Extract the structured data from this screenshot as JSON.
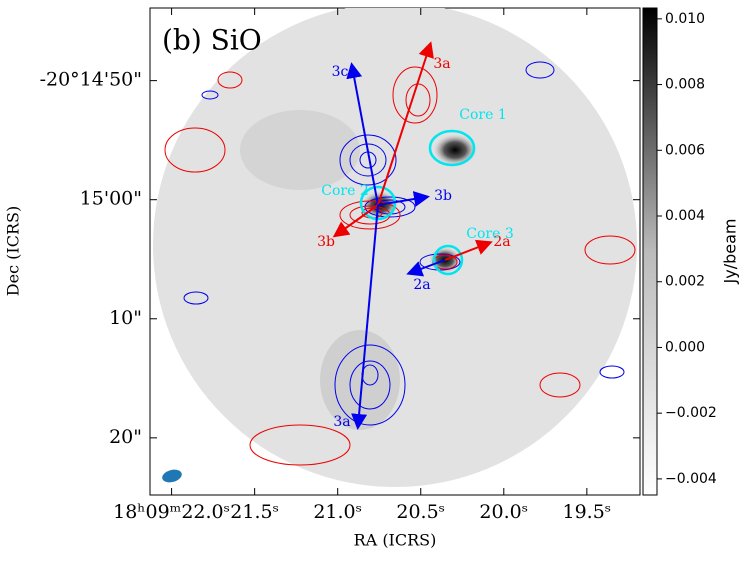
{
  "chart_data": {
    "type": "image",
    "title": "(b) SiO",
    "xlabel": "RA (ICRS)",
    "ylabel": "Dec (ICRS)",
    "xlim": [
      22.13,
      19.18
    ],
    "ylim": [
      -24.8,
      16.1
    ],
    "xticks": [
      {
        "value": 22.0,
        "label": "18ʰ09ᵐ22.0ˢ"
      },
      {
        "value": 21.5,
        "label": "21.5ˢ"
      },
      {
        "value": 21.0,
        "label": "21.0ˢ"
      },
      {
        "value": 20.5,
        "label": "20.5ˢ"
      },
      {
        "value": 20.0,
        "label": "20.0ˢ"
      },
      {
        "value": 19.5,
        "label": "19.5ˢ"
      }
    ],
    "yticks": [
      {
        "value": 10,
        "label": "-20°14'50\""
      },
      {
        "value": 0,
        "label": "15'00\""
      },
      {
        "value": -10,
        "label": "10\""
      },
      {
        "value": -20,
        "label": "20\""
      }
    ],
    "colorbar": {
      "label": "Jy/beam",
      "lim": [
        -0.00449,
        0.01033
      ],
      "ticks": [
        {
          "value": 0.01,
          "label": "0.010"
        },
        {
          "value": 0.008,
          "label": "0.008"
        },
        {
          "value": 0.006,
          "label": "0.006"
        },
        {
          "value": 0.004,
          "label": "0.004"
        },
        {
          "value": 0.002,
          "label": "0.002"
        },
        {
          "value": 0.0,
          "label": "0.000"
        },
        {
          "value": -0.002,
          "label": "−0.002"
        },
        {
          "value": -0.004,
          "label": "−0.004"
        }
      ]
    },
    "annotations": [
      {
        "text": "3c",
        "color": "#0000ee"
      },
      {
        "text": "3a",
        "color": "#ee0000"
      },
      {
        "text": "3b",
        "color": "#0000ee"
      },
      {
        "text": "3b",
        "color": "#ee0000"
      },
      {
        "text": "2a",
        "color": "#ee0000"
      },
      {
        "text": "2a",
        "color": "#0000ee"
      },
      {
        "text": "3a",
        "color": "#0000ee"
      },
      {
        "text": "Core 1",
        "color": "#00e5ee"
      },
      {
        "text": "Core 2",
        "color": "#00e5ee"
      },
      {
        "text": "Core 3",
        "color": "#00e5ee"
      }
    ]
  }
}
